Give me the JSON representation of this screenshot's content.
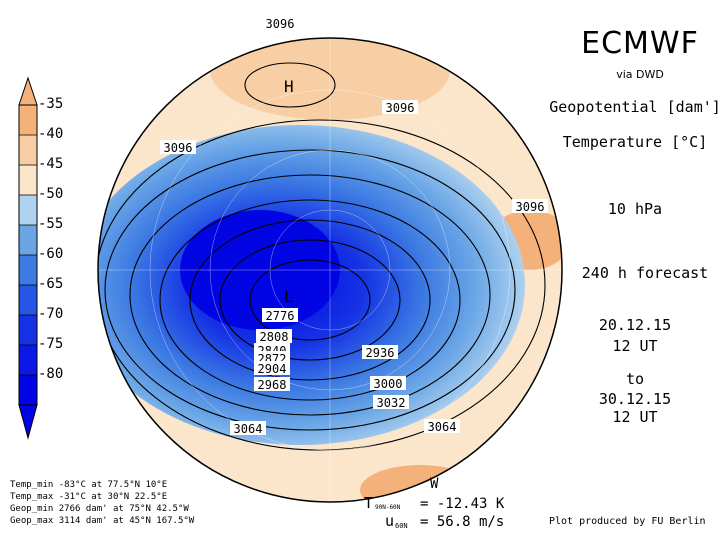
{
  "header": {
    "title": "ECMWF",
    "source": "via DWD",
    "variable_1": "Geopotential [dam']",
    "variable_2": "Temperature [°C]",
    "level": "10 hPa",
    "forecast": "240 h forecast",
    "init_date": "20.12.15",
    "init_time": "12 UT",
    "to_label": "to",
    "valid_date": "30.12.15",
    "valid_time": "12 UT"
  },
  "colorbar": {
    "labels": [
      "-35",
      "-40",
      "-45",
      "-50",
      "-55",
      "-60",
      "-65",
      "-70",
      "-75",
      "-80"
    ],
    "colors": [
      "#f4b27a",
      "#f8cfa5",
      "#fbe6cc",
      "#aed2ef",
      "#6aa6e6",
      "#3d7be3",
      "#2656e4",
      "#1533e4",
      "#0b18e6",
      "#0205e3"
    ]
  },
  "map": {
    "contour_labels": [
      "3096",
      "3096",
      "3096",
      "3096",
      "2776",
      "2808",
      "2840",
      "2872",
      "2904",
      "2968",
      "2936",
      "3000",
      "3032",
      "3064",
      "3064"
    ],
    "high_marker": "H",
    "low_marker": "L",
    "west_marker": "W"
  },
  "stats": {
    "temp_min": "Temp_min -83°C at 77.5°N 10°E",
    "temp_max": "Temp_max -31°C at 30°N 22.5°E",
    "geop_min": "Geop_min 2766 dam' at 75°N 42.5°W",
    "geop_max": "Geop_max 3114 dam' at 45°N 167.5°W"
  },
  "indices": {
    "t_symbol": "T",
    "t_subscript": "90N-60N",
    "t_value": "= -12.43 K",
    "u_symbol": "u",
    "u_subscript": "60N",
    "u_value": "= 56.8 m/s"
  },
  "credit": "Plot produced by FU Berlin"
}
